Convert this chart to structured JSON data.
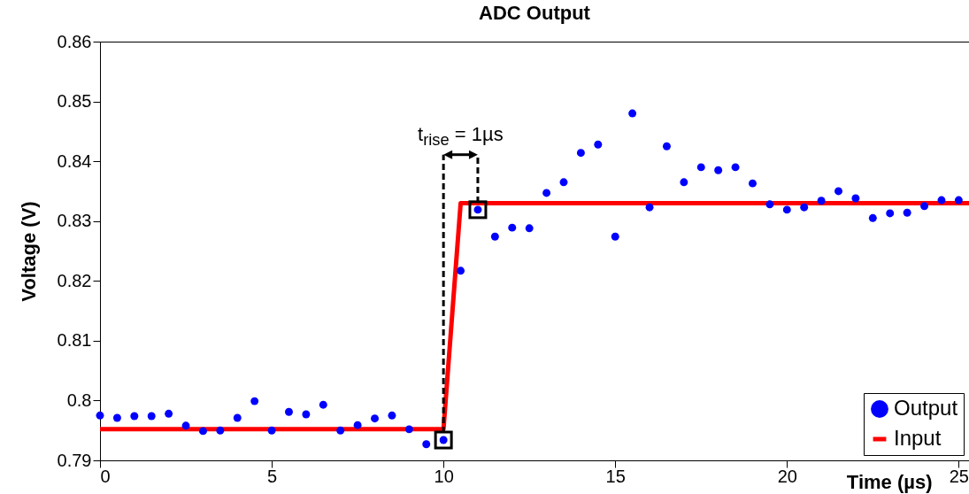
{
  "chart_data": {
    "type": "scatter",
    "title": "ADC Output",
    "xlabel": "Time (µs)",
    "ylabel": "Voltage (V)",
    "xlim": [
      0,
      25.3
    ],
    "xticks": [
      0,
      5,
      10,
      15,
      20,
      25
    ],
    "ylim": [
      0.79,
      0.86
    ],
    "yticks": [
      0.79,
      0.8,
      0.81,
      0.82,
      0.83,
      0.84,
      0.85,
      0.86
    ],
    "grid": false,
    "legend": "bottom right",
    "annotations": [
      {
        "text": "t$_{rise}$ = 1µs",
        "x": 10,
        "y": 0.7934
      }
    ],
    "series": [
      {
        "name": "Output",
        "marker": "circle",
        "color": "#0000ff",
        "x": [
          0,
          0.5,
          1,
          1.5,
          2,
          2.5,
          3,
          3.5,
          4,
          4.5,
          5,
          5.5,
          6,
          6.5,
          7,
          7.5,
          8,
          8.5,
          9,
          9.5,
          10,
          10.5,
          11,
          11.5,
          12,
          12.5,
          13,
          13.5,
          14,
          14.5,
          15,
          15.5,
          16,
          16.5,
          17,
          17.5,
          18,
          18.5,
          19,
          19.5,
          20,
          20.5,
          21,
          21.5,
          22,
          22.5,
          23,
          23.5,
          24,
          24.5,
          25
        ],
        "values": [
          0.7975,
          0.7971,
          0.7974,
          0.7974,
          0.7978,
          0.7958,
          0.7949,
          0.795,
          0.7971,
          0.7999,
          0.795,
          0.7981,
          0.7977,
          0.7993,
          0.795,
          0.7959,
          0.797,
          0.7975,
          0.7952,
          0.7927,
          0.7934,
          0.8217,
          0.8319,
          0.8274,
          0.8289,
          0.8288,
          0.8347,
          0.8365,
          0.8414,
          0.8428,
          0.8274,
          0.848,
          0.8323,
          0.8425,
          0.8365,
          0.839,
          0.8385,
          0.839,
          0.8363,
          0.8328,
          0.8319,
          0.8323,
          0.8334,
          0.835,
          0.8338,
          0.8305,
          0.8313,
          0.8314,
          0.8325,
          0.8335,
          0.8335
        ]
      },
      {
        "name": "Input",
        "type": "line",
        "marker": "none",
        "color": "#ff0000",
        "x": [
          0,
          10,
          10.5,
          25.3
        ],
        "values": [
          0.7952,
          0.7952,
          0.833,
          0.833
        ]
      }
    ]
  }
}
